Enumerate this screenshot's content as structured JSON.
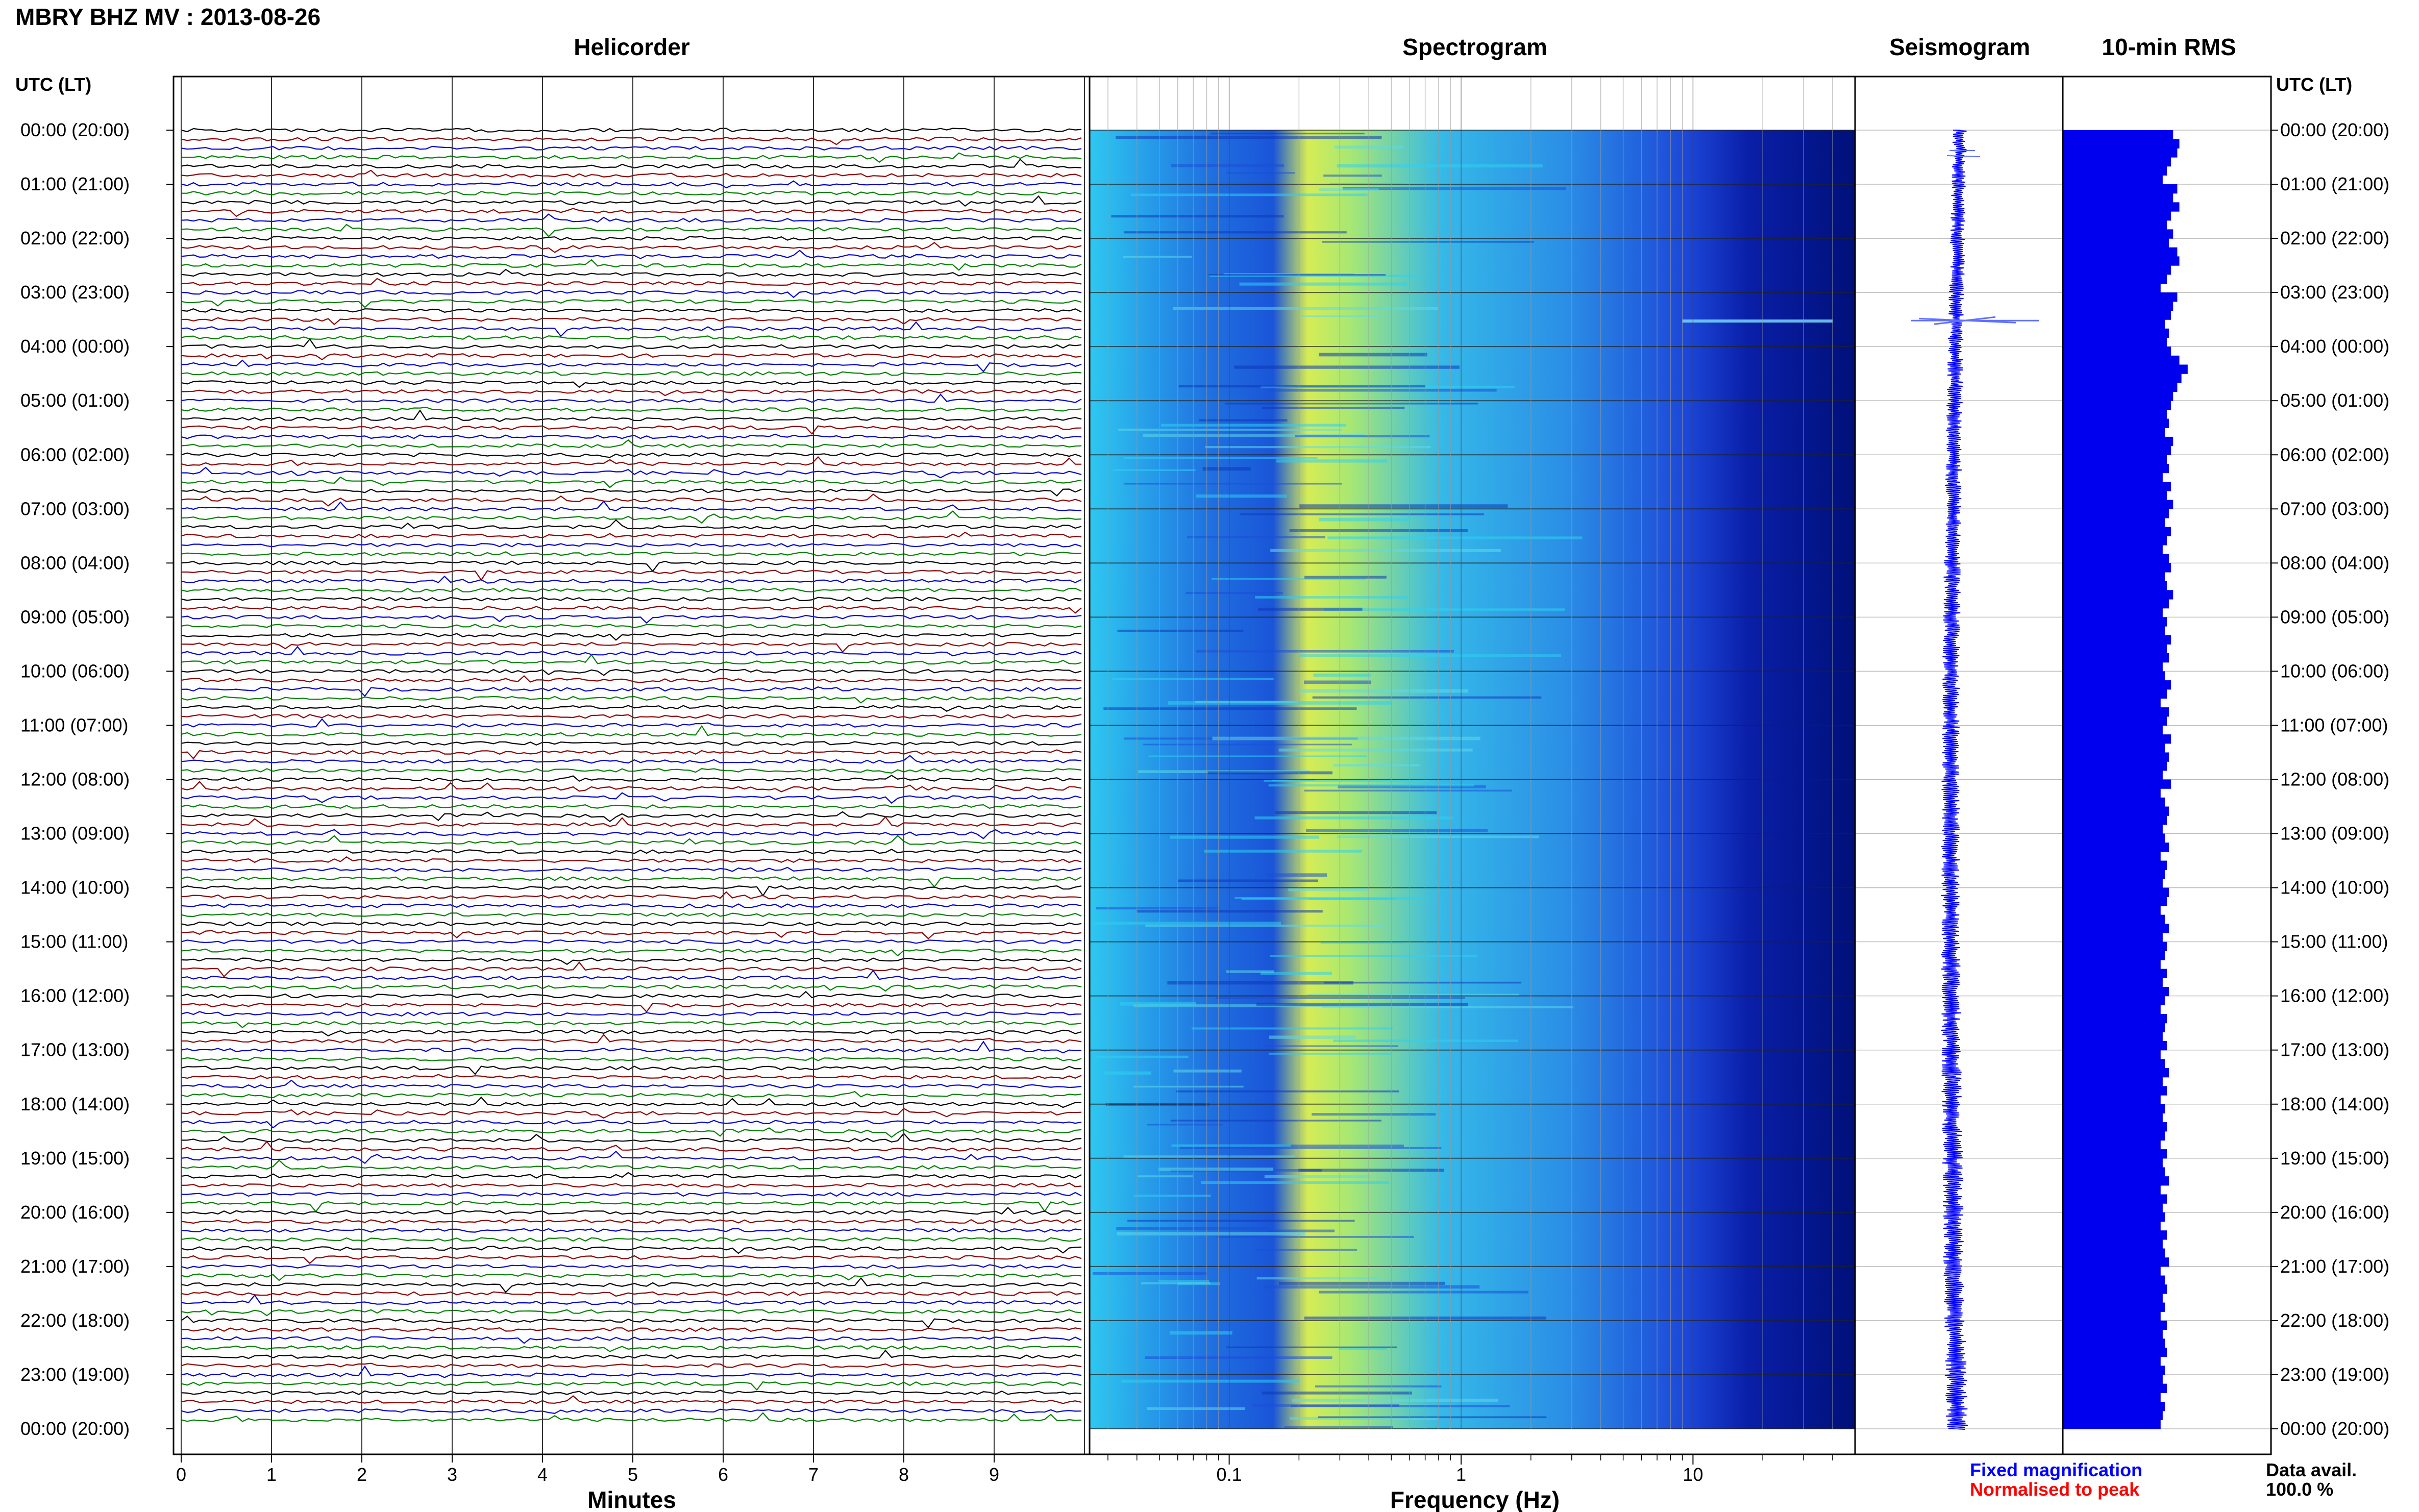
{
  "header": {
    "title": "MBRY BHZ MV : 2013-08-26"
  },
  "panels": {
    "helicorder": "Helicorder",
    "spectrogram": "Spectrogram",
    "seismogram": "Seismogram",
    "rms": "10-min RMS"
  },
  "axis": {
    "time_label_left": "UTC (LT)",
    "time_label_right": "UTC (LT)",
    "helicorder_xlabel": "Minutes",
    "spectrogram_xlabel": "Frequency (Hz)"
  },
  "legend": {
    "fixed": "Fixed magnification",
    "normalised": "Normalised to peak",
    "fixed_color": "#0000ff",
    "normalised_color": "#ff0000"
  },
  "availability": {
    "label": "Data avail.",
    "value": "100.0 %"
  },
  "colors": {
    "trace_cycle": [
      "#000000",
      "#8b0000",
      "#0000cd",
      "#008000"
    ],
    "rms_fill": "#0000ee"
  },
  "chart_data": [
    {
      "type": "line",
      "panel": "Helicorder",
      "xlabel": "Minutes",
      "xlim": [
        0,
        10
      ],
      "x_ticks": [
        "0",
        "1",
        "2",
        "3",
        "4",
        "5",
        "6",
        "7",
        "8",
        "9"
      ],
      "y_ticks": [
        "00:00 (20:00)",
        "01:00 (21:00)",
        "02:00 (22:00)",
        "03:00 (23:00)",
        "04:00 (00:00)",
        "05:00 (01:00)",
        "06:00 (02:00)",
        "07:00 (03:00)",
        "08:00 (04:00)",
        "09:00 (05:00)",
        "10:00 (06:00)",
        "11:00 (07:00)",
        "12:00 (08:00)",
        "13:00 (09:00)",
        "14:00 (10:00)",
        "15:00 (11:00)",
        "16:00 (12:00)",
        "17:00 (13:00)",
        "18:00 (14:00)",
        "19:00 (15:00)",
        "20:00 (16:00)",
        "21:00 (17:00)",
        "22:00 (18:00)",
        "23:00 (19:00)",
        "00:00 (20:00)"
      ],
      "lines_per_hour": 6
    },
    {
      "type": "heatmap",
      "panel": "Spectrogram",
      "xlabel": "Frequency (Hz)",
      "xscale": "log",
      "xlim": [
        0.025,
        50
      ],
      "x_ticks": [
        "0.1",
        "1",
        "10"
      ]
    },
    {
      "type": "line",
      "panel": "Seismogram",
      "legend": [
        "Fixed magnification",
        "Normalised to peak"
      ]
    },
    {
      "type": "bar",
      "panel": "10-min RMS",
      "orientation": "horizontal",
      "bins": 144,
      "values": [
        0.53,
        0.56,
        0.55,
        0.52,
        0.5,
        0.48,
        0.55,
        0.53,
        0.56,
        0.52,
        0.5,
        0.53,
        0.51,
        0.55,
        0.56,
        0.52,
        0.5,
        0.47,
        0.55,
        0.53,
        0.52,
        0.49,
        0.51,
        0.5,
        0.52,
        0.56,
        0.6,
        0.57,
        0.55,
        0.53,
        0.52,
        0.5,
        0.51,
        0.49,
        0.53,
        0.52,
        0.5,
        0.51,
        0.48,
        0.52,
        0.5,
        0.53,
        0.51,
        0.49,
        0.52,
        0.5,
        0.48,
        0.51,
        0.52,
        0.49,
        0.5,
        0.53,
        0.51,
        0.48,
        0.5,
        0.49,
        0.52,
        0.5,
        0.51,
        0.48,
        0.49,
        0.52,
        0.5,
        0.47,
        0.51,
        0.5,
        0.48,
        0.52,
        0.49,
        0.51,
        0.5,
        0.48,
        0.52,
        0.47,
        0.49,
        0.51,
        0.5,
        0.48,
        0.49,
        0.51,
        0.47,
        0.5,
        0.49,
        0.48,
        0.51,
        0.5,
        0.47,
        0.49,
        0.51,
        0.48,
        0.5,
        0.49,
        0.47,
        0.5,
        0.48,
        0.51,
        0.49,
        0.47,
        0.5,
        0.49,
        0.48,
        0.5,
        0.47,
        0.49,
        0.51,
        0.48,
        0.5,
        0.47,
        0.49,
        0.48,
        0.5,
        0.49,
        0.47,
        0.5,
        0.48,
        0.49,
        0.51,
        0.47,
        0.5,
        0.48,
        0.49,
        0.47,
        0.5,
        0.48,
        0.49,
        0.51,
        0.47,
        0.49,
        0.5,
        0.48,
        0.49,
        0.47,
        0.5,
        0.48,
        0.49,
        0.5,
        0.47,
        0.49,
        0.48,
        0.5,
        0.47,
        0.49,
        0.48,
        0.47
      ]
    }
  ]
}
